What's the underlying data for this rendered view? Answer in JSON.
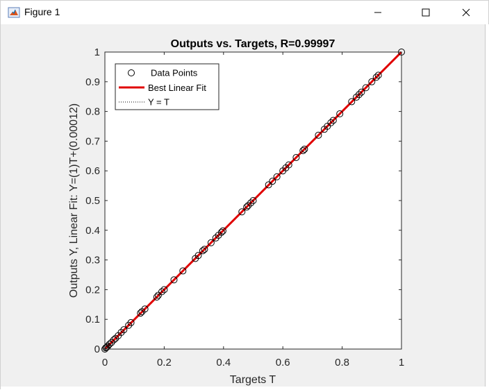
{
  "window": {
    "title": "Figure 1",
    "colors": {
      "chrome": "#f0f0f0",
      "titlebar": "#ffffff"
    }
  },
  "icons": {
    "app": "matlab-figure-icon",
    "minimize": "minimize-icon",
    "maximize": "maximize-icon",
    "close": "close-icon"
  },
  "chart_data": {
    "type": "scatter",
    "title": "Outputs vs. Targets, R=0.99997",
    "xlabel": "Targets T",
    "ylabel": "Outputs Y,  Linear Fit: Y=(1)T+(0.00012)",
    "xlim": [
      0,
      1
    ],
    "ylim": [
      0,
      1
    ],
    "xticks": [
      "0",
      "0.2",
      "0.4",
      "0.6",
      "0.8",
      "1"
    ],
    "yticks": [
      "0",
      "0.1",
      "0.2",
      "0.3",
      "0.4",
      "0.5",
      "0.6",
      "0.7",
      "0.8",
      "0.9",
      "1"
    ],
    "grid": false,
    "legend_position": "top-left",
    "legend": [
      "Data Points",
      "Best Linear Fit",
      "Y = T"
    ],
    "fit": {
      "slope": 1,
      "intercept": 0.00012,
      "color": "#e00000"
    },
    "series": [
      {
        "name": "Data Points",
        "points": [
          [
            0,
            0
          ],
          [
            0.003,
            0.004
          ],
          [
            0.006,
            0.006
          ],
          [
            0.01,
            0.01
          ],
          [
            0.015,
            0.016
          ],
          [
            0.022,
            0.022
          ],
          [
            0.03,
            0.031
          ],
          [
            0.036,
            0.036
          ],
          [
            0.045,
            0.045
          ],
          [
            0.055,
            0.056
          ],
          [
            0.064,
            0.065
          ],
          [
            0.08,
            0.08
          ],
          [
            0.088,
            0.089
          ],
          [
            0.12,
            0.121
          ],
          [
            0.125,
            0.126
          ],
          [
            0.135,
            0.135
          ],
          [
            0.175,
            0.175
          ],
          [
            0.18,
            0.181
          ],
          [
            0.192,
            0.193
          ],
          [
            0.2,
            0.2
          ],
          [
            0.233,
            0.233
          ],
          [
            0.263,
            0.263
          ],
          [
            0.305,
            0.305
          ],
          [
            0.315,
            0.315
          ],
          [
            0.33,
            0.331
          ],
          [
            0.336,
            0.336
          ],
          [
            0.358,
            0.358
          ],
          [
            0.374,
            0.374
          ],
          [
            0.383,
            0.383
          ],
          [
            0.393,
            0.393
          ],
          [
            0.398,
            0.398
          ],
          [
            0.462,
            0.462
          ],
          [
            0.478,
            0.478
          ],
          [
            0.483,
            0.483
          ],
          [
            0.492,
            0.492
          ],
          [
            0.5,
            0.5
          ],
          [
            0.552,
            0.553
          ],
          [
            0.565,
            0.565
          ],
          [
            0.58,
            0.58
          ],
          [
            0.6,
            0.6
          ],
          [
            0.61,
            0.61
          ],
          [
            0.62,
            0.62
          ],
          [
            0.645,
            0.645
          ],
          [
            0.668,
            0.668
          ],
          [
            0.673,
            0.673
          ],
          [
            0.72,
            0.72
          ],
          [
            0.74,
            0.74
          ],
          [
            0.75,
            0.75
          ],
          [
            0.762,
            0.762
          ],
          [
            0.77,
            0.77
          ],
          [
            0.792,
            0.792
          ],
          [
            0.832,
            0.833
          ],
          [
            0.848,
            0.848
          ],
          [
            0.857,
            0.857
          ],
          [
            0.865,
            0.865
          ],
          [
            0.88,
            0.88
          ],
          [
            0.9,
            0.9
          ],
          [
            0.915,
            0.915
          ],
          [
            0.922,
            0.922
          ],
          [
            1,
            1
          ]
        ]
      }
    ]
  }
}
